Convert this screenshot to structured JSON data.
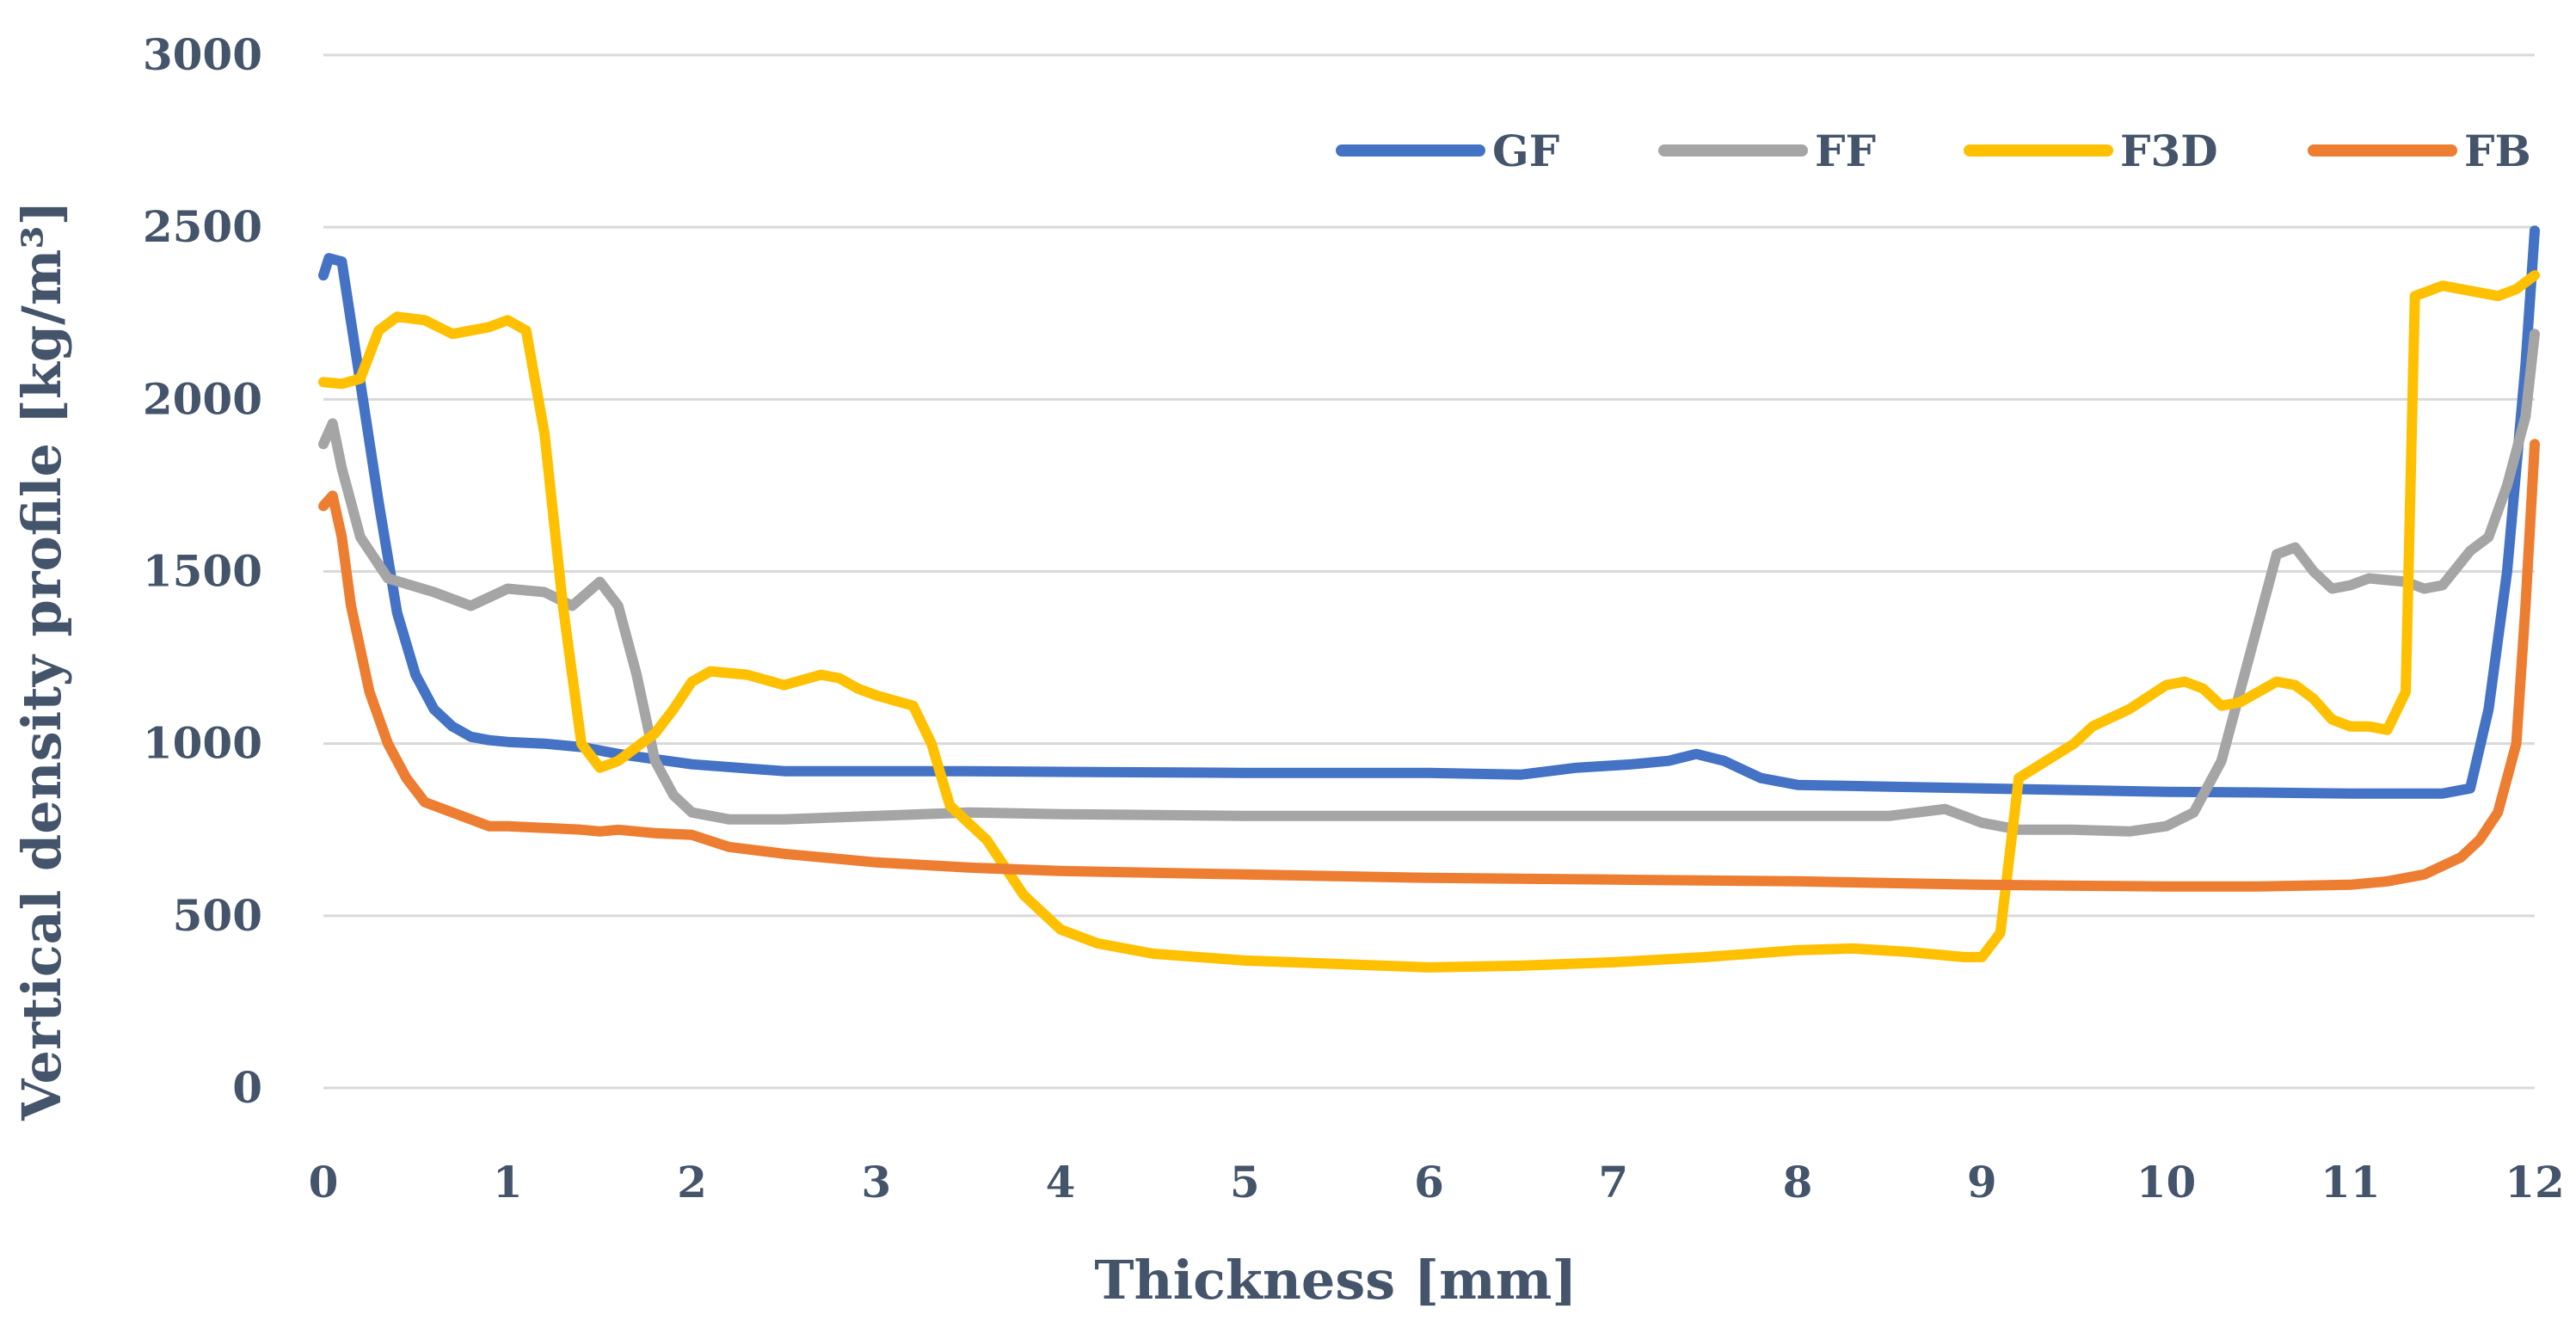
{
  "chart_data": {
    "type": "line",
    "title": "",
    "xlabel": "Thickness [mm]",
    "ylabel": "Vertical density profile [kg/m³]",
    "xlim": [
      0,
      12
    ],
    "ylim": [
      0,
      3000
    ],
    "x_ticks": [
      "0",
      "1",
      "2",
      "3",
      "4",
      "5",
      "6",
      "7",
      "8",
      "9",
      "10",
      "11",
      "12"
    ],
    "y_ticks": [
      "0",
      "500",
      "1000",
      "1500",
      "2000",
      "2500",
      "3000"
    ],
    "grid": true,
    "legend_position": "top-right",
    "series": [
      {
        "name": "GF",
        "color": "#4472c4",
        "points": [
          [
            0,
            2360
          ],
          [
            0.03,
            2410
          ],
          [
            0.1,
            2400
          ],
          [
            0.2,
            2050
          ],
          [
            0.3,
            1700
          ],
          [
            0.4,
            1380
          ],
          [
            0.5,
            1200
          ],
          [
            0.6,
            1100
          ],
          [
            0.7,
            1050
          ],
          [
            0.8,
            1020
          ],
          [
            0.9,
            1010
          ],
          [
            1.0,
            1005
          ],
          [
            1.2,
            1000
          ],
          [
            1.4,
            990
          ],
          [
            1.6,
            970
          ],
          [
            2.0,
            940
          ],
          [
            2.5,
            920
          ],
          [
            3.0,
            920
          ],
          [
            3.5,
            920
          ],
          [
            4.0,
            918
          ],
          [
            5.0,
            915
          ],
          [
            6.0,
            915
          ],
          [
            6.5,
            910
          ],
          [
            6.8,
            930
          ],
          [
            7.1,
            940
          ],
          [
            7.3,
            950
          ],
          [
            7.45,
            970
          ],
          [
            7.6,
            950
          ],
          [
            7.8,
            900
          ],
          [
            8.0,
            880
          ],
          [
            8.5,
            875
          ],
          [
            9.0,
            870
          ],
          [
            9.5,
            865
          ],
          [
            10.0,
            860
          ],
          [
            10.5,
            858
          ],
          [
            11.0,
            855
          ],
          [
            11.5,
            855
          ],
          [
            11.65,
            870
          ],
          [
            11.75,
            1100
          ],
          [
            11.85,
            1500
          ],
          [
            11.95,
            2100
          ],
          [
            12.0,
            2490
          ]
        ]
      },
      {
        "name": "FF",
        "color": "#a5a5a5",
        "points": [
          [
            0,
            1870
          ],
          [
            0.05,
            1930
          ],
          [
            0.1,
            1800
          ],
          [
            0.2,
            1600
          ],
          [
            0.35,
            1480
          ],
          [
            0.6,
            1440
          ],
          [
            0.8,
            1400
          ],
          [
            1.0,
            1450
          ],
          [
            1.2,
            1440
          ],
          [
            1.35,
            1400
          ],
          [
            1.5,
            1470
          ],
          [
            1.6,
            1400
          ],
          [
            1.7,
            1200
          ],
          [
            1.8,
            950
          ],
          [
            1.9,
            850
          ],
          [
            2.0,
            800
          ],
          [
            2.2,
            780
          ],
          [
            2.5,
            780
          ],
          [
            3.0,
            790
          ],
          [
            3.5,
            800
          ],
          [
            4.0,
            795
          ],
          [
            5.0,
            790
          ],
          [
            6.0,
            790
          ],
          [
            7.0,
            790
          ],
          [
            8.0,
            790
          ],
          [
            8.5,
            790
          ],
          [
            8.8,
            810
          ],
          [
            9.0,
            770
          ],
          [
            9.2,
            750
          ],
          [
            9.5,
            750
          ],
          [
            9.8,
            745
          ],
          [
            10.0,
            760
          ],
          [
            10.15,
            800
          ],
          [
            10.3,
            950
          ],
          [
            10.45,
            1250
          ],
          [
            10.6,
            1550
          ],
          [
            10.7,
            1570
          ],
          [
            10.8,
            1500
          ],
          [
            10.9,
            1450
          ],
          [
            11.0,
            1460
          ],
          [
            11.1,
            1480
          ],
          [
            11.3,
            1470
          ],
          [
            11.4,
            1450
          ],
          [
            11.5,
            1460
          ],
          [
            11.65,
            1560
          ],
          [
            11.75,
            1600
          ],
          [
            11.85,
            1750
          ],
          [
            11.95,
            1950
          ],
          [
            12.0,
            2190
          ]
        ]
      },
      {
        "name": "F3D",
        "color": "#ffc000",
        "points": [
          [
            0,
            2050
          ],
          [
            0.1,
            2045
          ],
          [
            0.2,
            2060
          ],
          [
            0.3,
            2200
          ],
          [
            0.4,
            2240
          ],
          [
            0.55,
            2230
          ],
          [
            0.7,
            2190
          ],
          [
            0.8,
            2200
          ],
          [
            0.9,
            2210
          ],
          [
            1.0,
            2230
          ],
          [
            1.1,
            2200
          ],
          [
            1.2,
            1900
          ],
          [
            1.3,
            1400
          ],
          [
            1.4,
            1000
          ],
          [
            1.5,
            930
          ],
          [
            1.6,
            950
          ],
          [
            1.8,
            1030
          ],
          [
            1.9,
            1100
          ],
          [
            2.0,
            1180
          ],
          [
            2.1,
            1210
          ],
          [
            2.3,
            1200
          ],
          [
            2.5,
            1170
          ],
          [
            2.7,
            1200
          ],
          [
            2.8,
            1190
          ],
          [
            2.9,
            1160
          ],
          [
            3.0,
            1140
          ],
          [
            3.2,
            1110
          ],
          [
            3.3,
            1000
          ],
          [
            3.4,
            820
          ],
          [
            3.6,
            720
          ],
          [
            3.8,
            560
          ],
          [
            4.0,
            460
          ],
          [
            4.2,
            420
          ],
          [
            4.5,
            390
          ],
          [
            5.0,
            370
          ],
          [
            5.5,
            360
          ],
          [
            6.0,
            350
          ],
          [
            6.5,
            355
          ],
          [
            7.0,
            365
          ],
          [
            7.5,
            380
          ],
          [
            8.0,
            400
          ],
          [
            8.3,
            405
          ],
          [
            8.6,
            395
          ],
          [
            8.9,
            380
          ],
          [
            9.0,
            380
          ],
          [
            9.1,
            450
          ],
          [
            9.2,
            900
          ],
          [
            9.35,
            950
          ],
          [
            9.5,
            1000
          ],
          [
            9.6,
            1050
          ],
          [
            9.8,
            1100
          ],
          [
            10.0,
            1170
          ],
          [
            10.1,
            1180
          ],
          [
            10.2,
            1160
          ],
          [
            10.3,
            1110
          ],
          [
            10.4,
            1120
          ],
          [
            10.5,
            1150
          ],
          [
            10.6,
            1180
          ],
          [
            10.7,
            1170
          ],
          [
            10.8,
            1130
          ],
          [
            10.9,
            1070
          ],
          [
            11.0,
            1050
          ],
          [
            11.1,
            1050
          ],
          [
            11.2,
            1040
          ],
          [
            11.3,
            1150
          ],
          [
            11.35,
            2300
          ],
          [
            11.5,
            2330
          ],
          [
            11.6,
            2320
          ],
          [
            11.7,
            2310
          ],
          [
            11.8,
            2300
          ],
          [
            11.9,
            2320
          ],
          [
            12.0,
            2360
          ]
        ]
      },
      {
        "name": "FB",
        "color": "#ed7d31",
        "points": [
          [
            0,
            1690
          ],
          [
            0.05,
            1720
          ],
          [
            0.1,
            1600
          ],
          [
            0.15,
            1400
          ],
          [
            0.25,
            1150
          ],
          [
            0.35,
            1000
          ],
          [
            0.45,
            900
          ],
          [
            0.55,
            830
          ],
          [
            0.65,
            810
          ],
          [
            0.8,
            780
          ],
          [
            0.9,
            760
          ],
          [
            1.0,
            760
          ],
          [
            1.2,
            755
          ],
          [
            1.4,
            750
          ],
          [
            1.5,
            745
          ],
          [
            1.6,
            750
          ],
          [
            1.8,
            740
          ],
          [
            2.0,
            735
          ],
          [
            2.2,
            700
          ],
          [
            2.5,
            680
          ],
          [
            3.0,
            655
          ],
          [
            3.5,
            640
          ],
          [
            4.0,
            630
          ],
          [
            5.0,
            620
          ],
          [
            6.0,
            610
          ],
          [
            7.0,
            605
          ],
          [
            8.0,
            600
          ],
          [
            9.0,
            590
          ],
          [
            10.0,
            585
          ],
          [
            10.5,
            585
          ],
          [
            11.0,
            590
          ],
          [
            11.2,
            600
          ],
          [
            11.4,
            620
          ],
          [
            11.6,
            670
          ],
          [
            11.7,
            720
          ],
          [
            11.8,
            800
          ],
          [
            11.9,
            1000
          ],
          [
            11.95,
            1400
          ],
          [
            12.0,
            1870
          ]
        ]
      }
    ]
  }
}
